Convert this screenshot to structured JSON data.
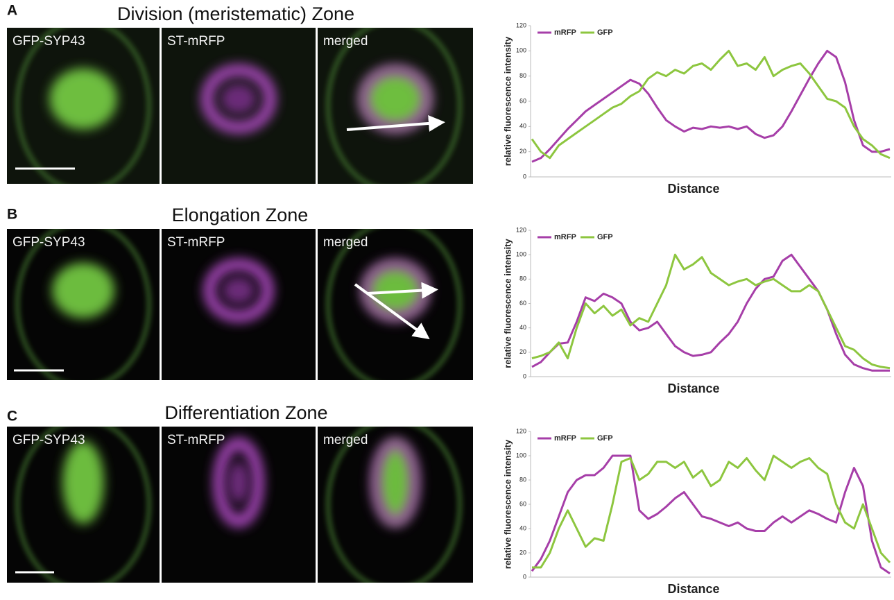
{
  "panels": [
    {
      "letter": "A",
      "title": "Division (meristematic) Zone",
      "image_labels": [
        "GFP-SYP43",
        "ST-mRFP",
        "merged"
      ]
    },
    {
      "letter": "B",
      "title": "Elongation Zone",
      "image_labels": [
        "GFP-SYP43",
        "ST-mRFP",
        "merged"
      ]
    },
    {
      "letter": "C",
      "title": "Differentiation  Zone",
      "image_labels": [
        "GFP-SYP43",
        "ST-mRFP",
        "merged"
      ]
    }
  ],
  "chart_data": [
    {
      "type": "line",
      "ylabel": "relative fluorescence intensity",
      "xlabel": "Distance",
      "ylim": [
        0,
        120
      ],
      "yticks": [
        0,
        20,
        40,
        60,
        80,
        100,
        120
      ],
      "legend": "upper left",
      "series": [
        {
          "name": "mRFP",
          "color": "#a63ea8",
          "values": [
            12,
            15,
            22,
            30,
            38,
            45,
            52,
            57,
            62,
            67,
            72,
            77,
            74,
            66,
            55,
            45,
            40,
            36,
            39,
            38,
            40,
            39,
            40,
            38,
            40,
            34,
            31,
            33,
            40,
            52,
            65,
            78,
            90,
            100,
            95,
            75,
            45,
            25,
            20,
            20,
            22
          ]
        },
        {
          "name": "GFP",
          "color": "#8dc63f",
          "values": [
            30,
            20,
            15,
            25,
            30,
            35,
            40,
            45,
            50,
            55,
            58,
            64,
            68,
            78,
            83,
            80,
            85,
            82,
            88,
            90,
            85,
            93,
            100,
            88,
            90,
            85,
            95,
            80,
            85,
            88,
            90,
            82,
            72,
            62,
            60,
            55,
            40,
            30,
            25,
            18,
            15
          ]
        }
      ]
    },
    {
      "type": "line",
      "ylabel": "relative fluorescence intensity",
      "xlabel": "Distance",
      "ylim": [
        0,
        120
      ],
      "yticks": [
        0,
        20,
        40,
        60,
        80,
        100,
        120
      ],
      "legend": "upper left",
      "series": [
        {
          "name": "mRFP",
          "color": "#a63ea8",
          "values": [
            8,
            12,
            20,
            27,
            28,
            45,
            65,
            62,
            68,
            65,
            60,
            45,
            38,
            40,
            45,
            35,
            25,
            20,
            17,
            18,
            20,
            28,
            35,
            45,
            60,
            72,
            80,
            82,
            95,
            100,
            90,
            80,
            70,
            55,
            35,
            18,
            10,
            7,
            5,
            5,
            5
          ]
        },
        {
          "name": "GFP",
          "color": "#8dc63f",
          "values": [
            15,
            17,
            20,
            28,
            15,
            40,
            60,
            52,
            58,
            50,
            55,
            42,
            48,
            45,
            60,
            75,
            100,
            88,
            92,
            98,
            85,
            80,
            75,
            78,
            80,
            75,
            78,
            80,
            75,
            70,
            70,
            75,
            70,
            55,
            40,
            25,
            22,
            15,
            10,
            8,
            7
          ]
        }
      ]
    },
    {
      "type": "line",
      "ylabel": "relative fluorescence intensity",
      "xlabel": "Distance",
      "ylim": [
        0,
        120
      ],
      "yticks": [
        0,
        20,
        40,
        60,
        80,
        100,
        120
      ],
      "legend": "upper left",
      "series": [
        {
          "name": "mRFP",
          "color": "#a63ea8",
          "values": [
            5,
            15,
            30,
            50,
            70,
            80,
            84,
            84,
            90,
            100,
            100,
            100,
            55,
            48,
            52,
            58,
            65,
            70,
            60,
            50,
            48,
            45,
            42,
            45,
            40,
            38,
            38,
            45,
            50,
            45,
            50,
            55,
            52,
            48,
            45,
            70,
            90,
            75,
            30,
            8,
            3
          ]
        },
        {
          "name": "GFP",
          "color": "#8dc63f",
          "values": [
            8,
            8,
            20,
            40,
            55,
            40,
            25,
            32,
            30,
            60,
            95,
            98,
            80,
            85,
            95,
            95,
            90,
            95,
            82,
            88,
            75,
            80,
            95,
            90,
            98,
            88,
            80,
            100,
            95,
            90,
            95,
            98,
            90,
            85,
            60,
            45,
            40,
            60,
            40,
            20,
            12
          ]
        }
      ]
    }
  ]
}
